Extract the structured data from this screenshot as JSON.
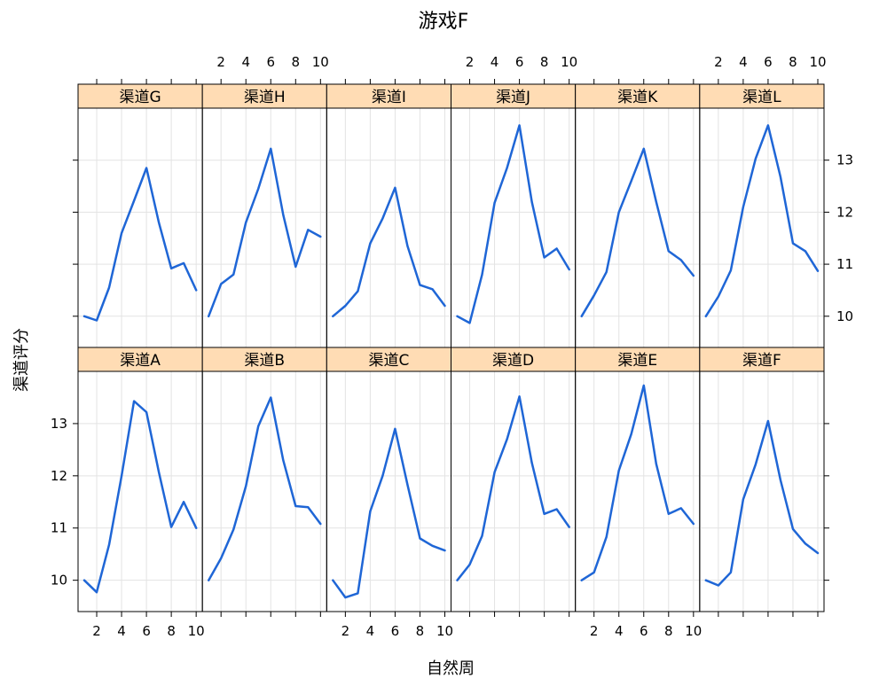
{
  "chart_data": {
    "type": "line",
    "title": "游戏F",
    "xlabel": "自然周",
    "ylabel": "渠道评分",
    "x": [
      1,
      2,
      3,
      4,
      5,
      6,
      7,
      8,
      9,
      10
    ],
    "xlim": [
      0.5,
      10.5
    ],
    "ylim": [
      9.4,
      14.0
    ],
    "xticks": [
      2,
      4,
      6,
      8,
      10
    ],
    "yticks": [
      10,
      11,
      12,
      13
    ],
    "grid": true,
    "layout": {
      "columns": 6,
      "rows": 2
    },
    "line_color": "#1f66d6",
    "strip_color": "#ffdcb4",
    "panels": [
      {
        "name": "渠道G",
        "values": [
          10.0,
          9.92,
          10.55,
          11.6,
          12.22,
          12.85,
          11.8,
          10.92,
          11.02,
          10.5
        ]
      },
      {
        "name": "渠道H",
        "values": [
          10.0,
          10.62,
          10.8,
          11.8,
          12.45,
          13.22,
          11.95,
          10.95,
          11.66,
          11.53
        ]
      },
      {
        "name": "渠道I",
        "values": [
          10.0,
          10.2,
          10.48,
          11.4,
          11.88,
          12.47,
          11.35,
          10.6,
          10.52,
          10.2
        ]
      },
      {
        "name": "渠道J",
        "values": [
          10.0,
          9.87,
          10.8,
          12.18,
          12.85,
          13.67,
          12.2,
          11.13,
          11.3,
          10.9
        ]
      },
      {
        "name": "渠道K",
        "values": [
          10.0,
          10.4,
          10.85,
          12.0,
          12.6,
          13.22,
          12.2,
          11.25,
          11.08,
          10.78
        ]
      },
      {
        "name": "渠道L",
        "values": [
          10.0,
          10.38,
          10.88,
          12.1,
          13.03,
          13.67,
          12.68,
          11.4,
          11.25,
          10.87
        ]
      },
      {
        "name": "渠道A",
        "values": [
          10.0,
          9.77,
          10.68,
          12.0,
          13.43,
          13.22,
          12.07,
          11.02,
          11.5,
          11.0
        ]
      },
      {
        "name": "渠道B",
        "values": [
          10.0,
          10.42,
          10.97,
          11.8,
          12.95,
          13.5,
          12.3,
          11.42,
          11.4,
          11.08
        ]
      },
      {
        "name": "渠道C",
        "values": [
          10.0,
          9.67,
          9.75,
          11.32,
          12.0,
          12.9,
          11.83,
          10.8,
          10.66,
          10.57
        ]
      },
      {
        "name": "渠道D",
        "values": [
          10.0,
          10.3,
          10.85,
          12.07,
          12.7,
          13.52,
          12.25,
          11.27,
          11.36,
          11.02
        ]
      },
      {
        "name": "渠道E",
        "values": [
          10.0,
          10.15,
          10.83,
          12.1,
          12.8,
          13.73,
          12.23,
          11.27,
          11.38,
          11.08
        ]
      },
      {
        "name": "渠道F",
        "values": [
          10.0,
          9.9,
          10.15,
          11.55,
          12.22,
          13.05,
          11.92,
          10.98,
          10.7,
          10.52
        ]
      }
    ]
  }
}
